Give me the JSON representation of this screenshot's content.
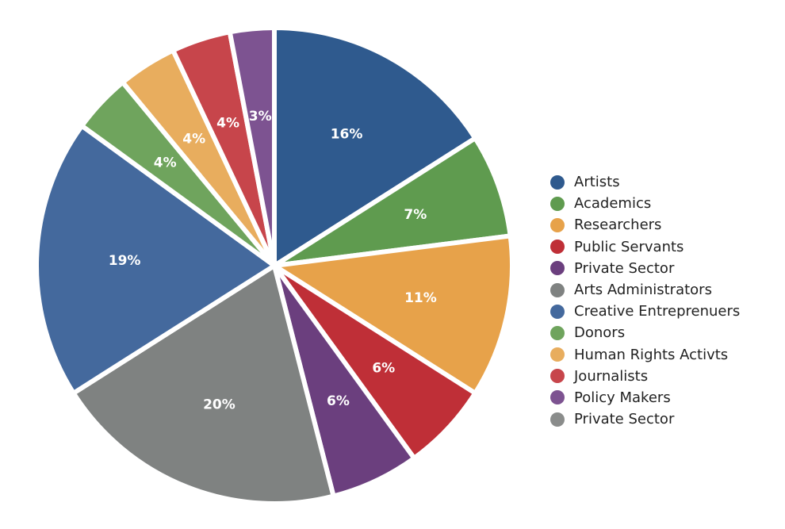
{
  "chart_data": {
    "type": "pie",
    "title": "",
    "categories": [
      "Artists",
      "Academics",
      "Researchers",
      "Public Servants",
      "Private Sector",
      "Arts Administrators",
      "Creative Entreprenuers",
      "Donors",
      "Human Rights Activts",
      "Journalists",
      "Policy Makers",
      "Private Sector"
    ],
    "values": [
      16,
      7,
      11,
      6,
      6,
      20,
      19,
      4,
      4,
      4,
      3,
      0
    ],
    "labels": [
      "16%",
      "7%",
      "11%",
      "6%",
      "6%",
      "20%",
      "19%",
      "4%",
      "4%",
      "4%",
      "3%",
      ""
    ],
    "colors": [
      "#2f5a8e",
      "#5f9b4f",
      "#e7a24a",
      "#bf2f37",
      "#6b3f7e",
      "#7f8281",
      "#44699d",
      "#6fa45d",
      "#e8ad5e",
      "#c7454b",
      "#7d5391",
      "#8a8c8b"
    ],
    "legend_position": "right"
  }
}
